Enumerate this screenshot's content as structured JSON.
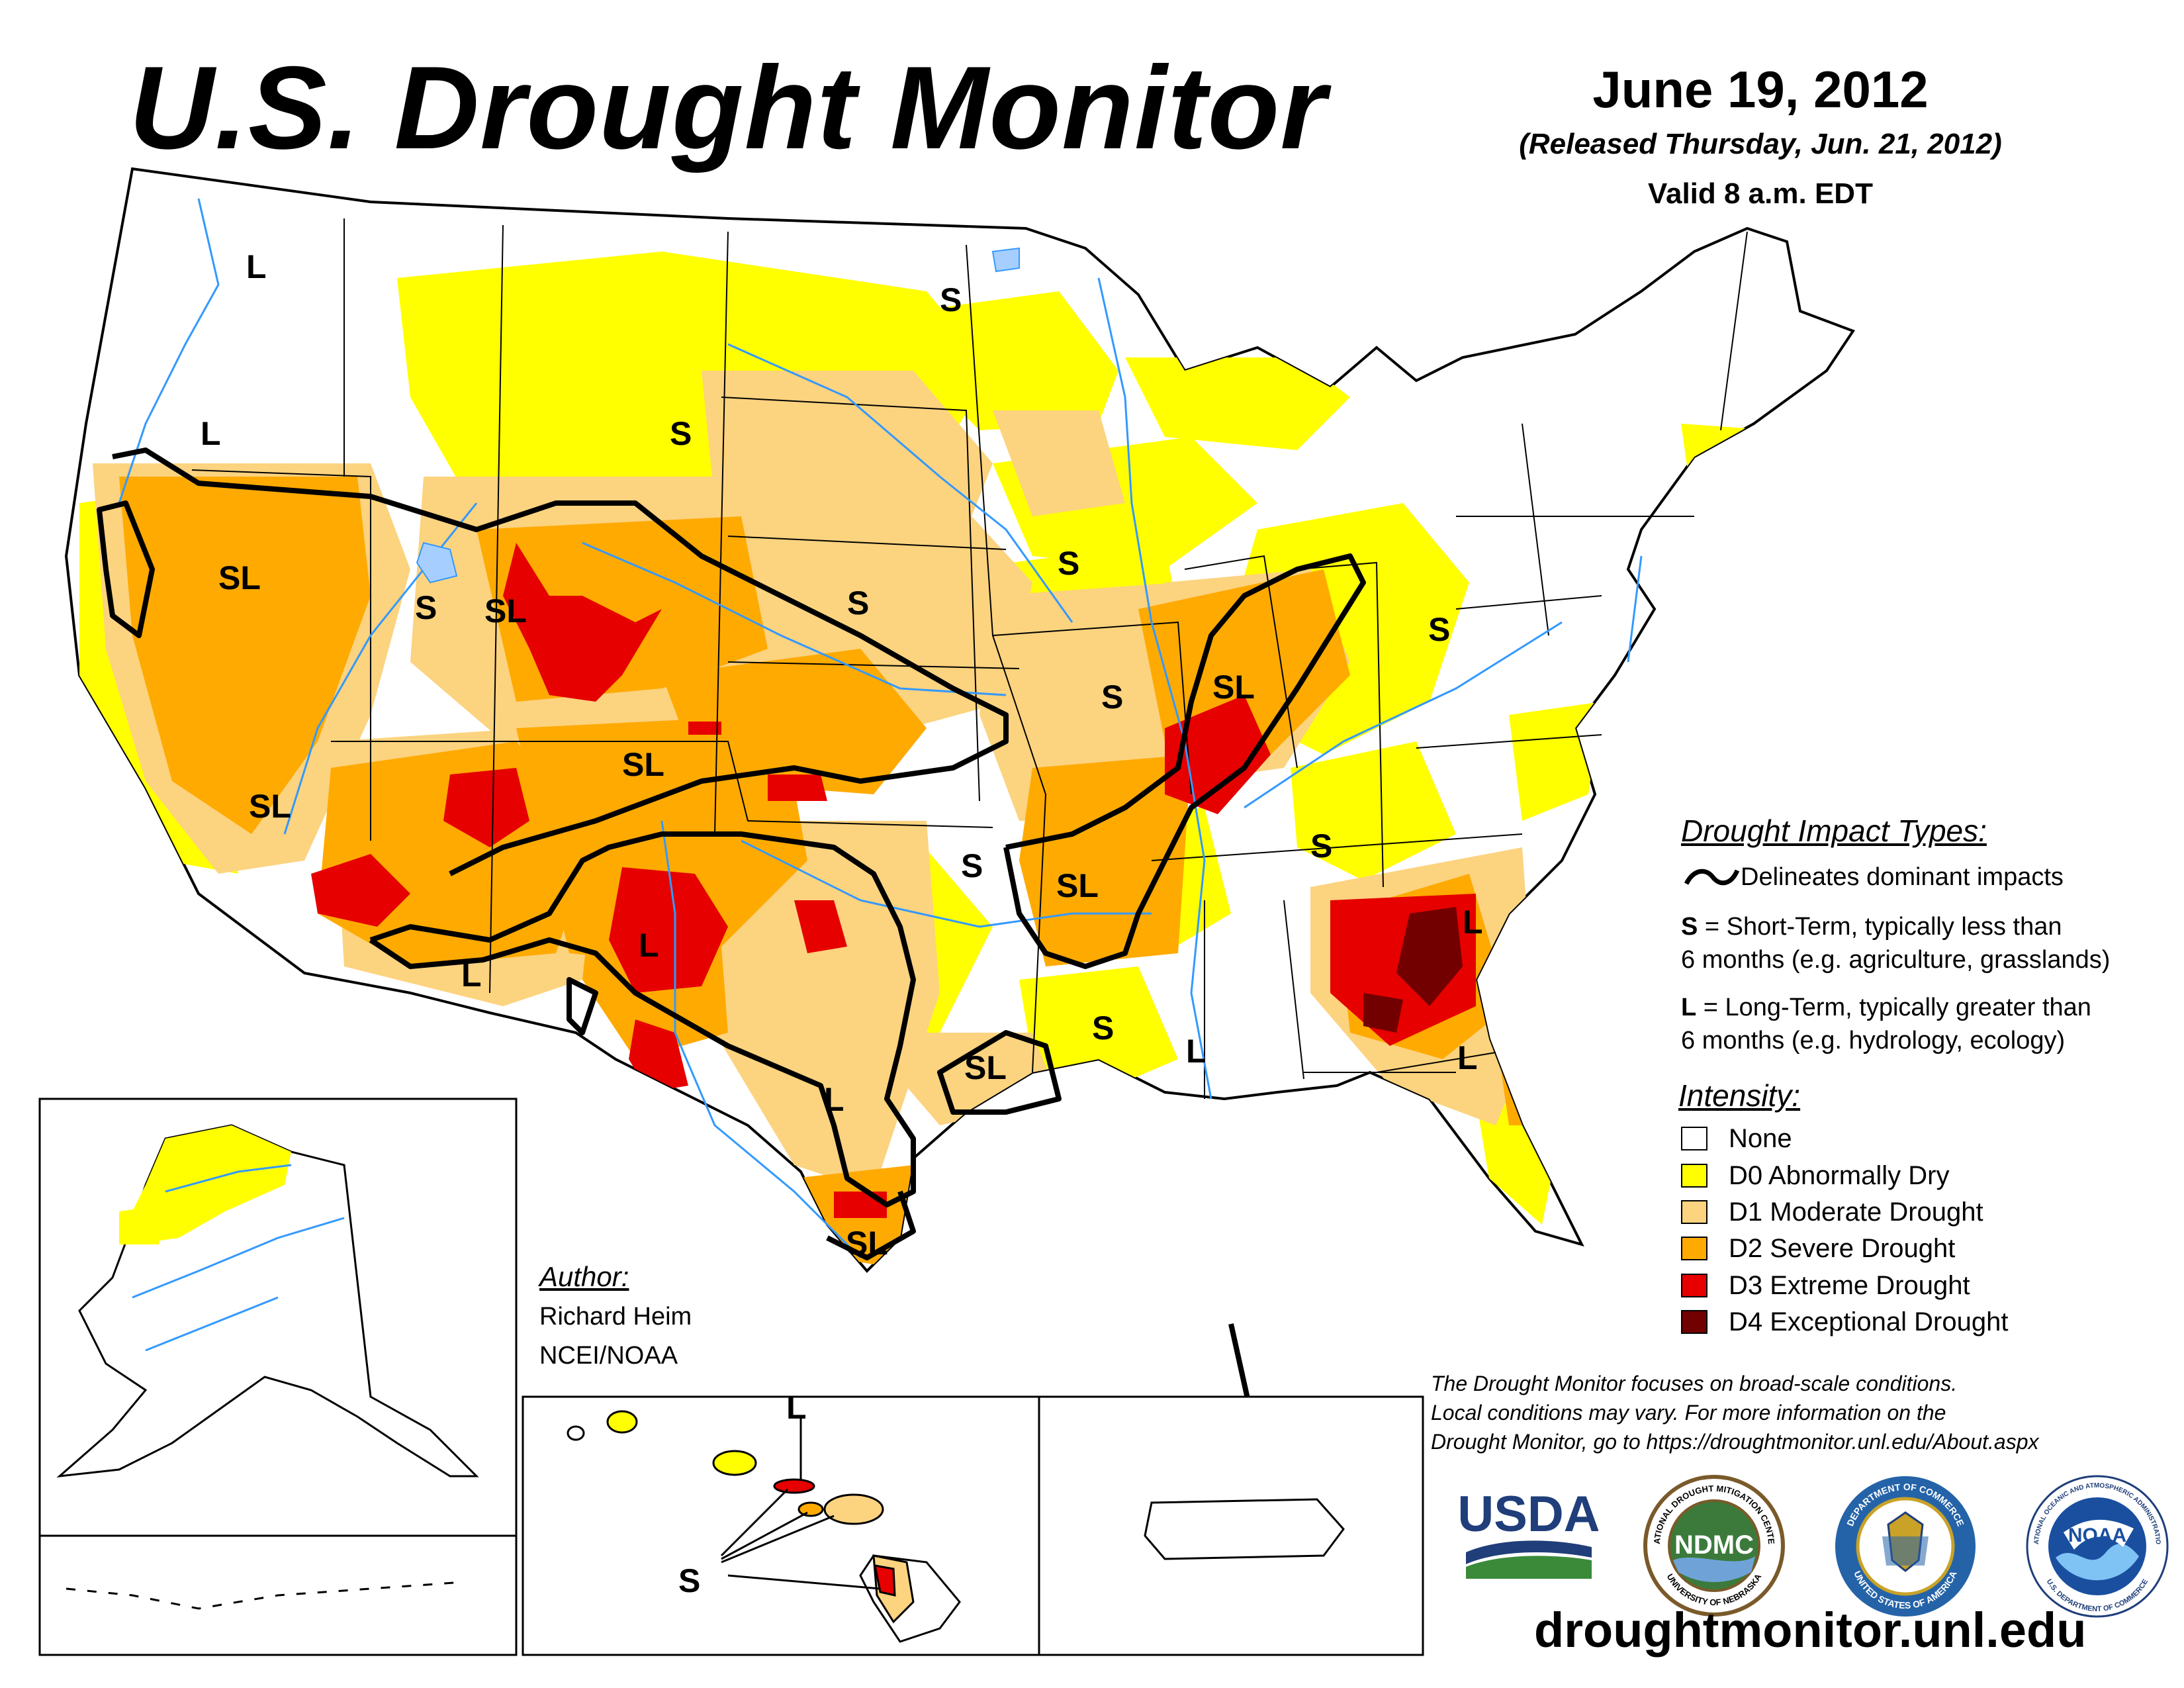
{
  "header": {
    "title": "U.S. Drought Monitor",
    "date": "June 19, 2012",
    "released": "(Released Thursday, Jun. 21, 2012)",
    "valid": "Valid 8 a.m. EDT"
  },
  "map_labels": {
    "idaho_l": "L",
    "oregon_l": "L",
    "minnesota_s": "S",
    "south_dakota_s": "S",
    "nevada_sl": "SL",
    "utah_s": "S",
    "wyoming_sl": "SL",
    "nebraska_s": "S",
    "iowa_s": "S",
    "ohio_s": "S",
    "missouri_s": "S",
    "indiana_sl": "SL",
    "colorado_sl": "SL",
    "california_sl": "SL",
    "arizona_l": "L",
    "new_mexico_l": "L",
    "oklahoma_s": "S",
    "arkansas_sl": "SL",
    "tennessee_s": "S",
    "louisiana_s": "S",
    "mississippi_l": "L",
    "east_texas_sl": "SL",
    "texas_l": "L",
    "south_texas_sl": "SL",
    "georgia_l_north": "L",
    "florida_l": "L",
    "hawaii_l": "L",
    "hawaii_s": "S"
  },
  "impact_legend": {
    "heading": "Drought Impact Types:",
    "line_text": "Delineates dominant impacts",
    "s_key": "S",
    "s_text_1": " = Short-Term, typically less than",
    "s_text_2": "6 months (e.g. agriculture, grasslands)",
    "l_key": "L",
    "l_text_1": " = Long-Term, typically greater than",
    "l_text_2": "6 months (e.g. hydrology, ecology)"
  },
  "intensity_legend": {
    "heading": "Intensity:",
    "items": [
      {
        "label": "None",
        "color": "#ffffff"
      },
      {
        "label": "D0 Abnormally Dry",
        "color": "#ffff00"
      },
      {
        "label": "D1 Moderate Drought",
        "color": "#fcd37f"
      },
      {
        "label": "D2 Severe Drought",
        "color": "#ffaa00"
      },
      {
        "label": "D3 Extreme Drought",
        "color": "#e60000"
      },
      {
        "label": "D4 Exceptional Drought",
        "color": "#730000"
      }
    ]
  },
  "note": {
    "line1": "The Drought Monitor focuses on broad-scale conditions.",
    "line2": "Local conditions may vary. For more information on the",
    "line3": "Drought Monitor, go to https://droughtmonitor.unl.edu/About.aspx"
  },
  "author": {
    "heading": "Author:",
    "name": "Richard Heim",
    "org": "NCEI/NOAA"
  },
  "logos": {
    "usda": "USDA",
    "ndmc": "NDMC",
    "ndmc_ring_top": "NATIONAL DROUGHT MITIGATION CENTER",
    "ndmc_ring_bottom": "UNIVERSITY OF NEBRASKA",
    "commerce_ring_top": "DEPARTMENT OF COMMERCE",
    "commerce_ring_bottom": "UNITED STATES OF AMERICA",
    "noaa": "NOAA",
    "noaa_ring_top": "NATIONAL OCEANIC AND ATMOSPHERIC ADMINISTRATION",
    "noaa_ring_bottom": "U.S. DEPARTMENT OF COMMERCE"
  },
  "website": "droughtmonitor.unl.edu",
  "colors": {
    "d0": "#ffff00",
    "d1": "#fcd37f",
    "d2": "#ffaa00",
    "d3": "#e60000",
    "d4": "#730000",
    "water": "#3399ff",
    "lake": "#a6cfff"
  }
}
